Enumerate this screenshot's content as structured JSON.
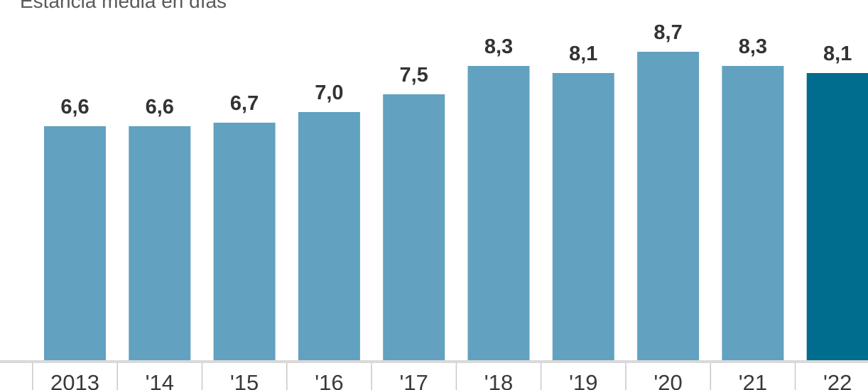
{
  "chart_data": {
    "type": "bar",
    "title": "",
    "subtitle": "Estancia media en días",
    "xlabel": "",
    "ylabel": "",
    "categories": [
      "2013",
      "'14",
      "'15",
      "'16",
      "'17",
      "'18",
      "'19",
      "'20",
      "'21",
      "'22"
    ],
    "values": [
      6.6,
      6.6,
      6.7,
      7.0,
      7.5,
      8.3,
      8.1,
      8.7,
      8.3,
      8.1
    ],
    "value_labels": [
      "6,6",
      "6,6",
      "6,7",
      "7,0",
      "7,5",
      "8,3",
      "8,1",
      "8,7",
      "8,3",
      "8,1"
    ],
    "ylim": [
      0,
      8.7
    ],
    "grid": false,
    "colors": {
      "bar": "#62a1c0",
      "highlight": "#006c8e",
      "baseline": "#d9d9d9"
    },
    "highlight_index": 9
  }
}
